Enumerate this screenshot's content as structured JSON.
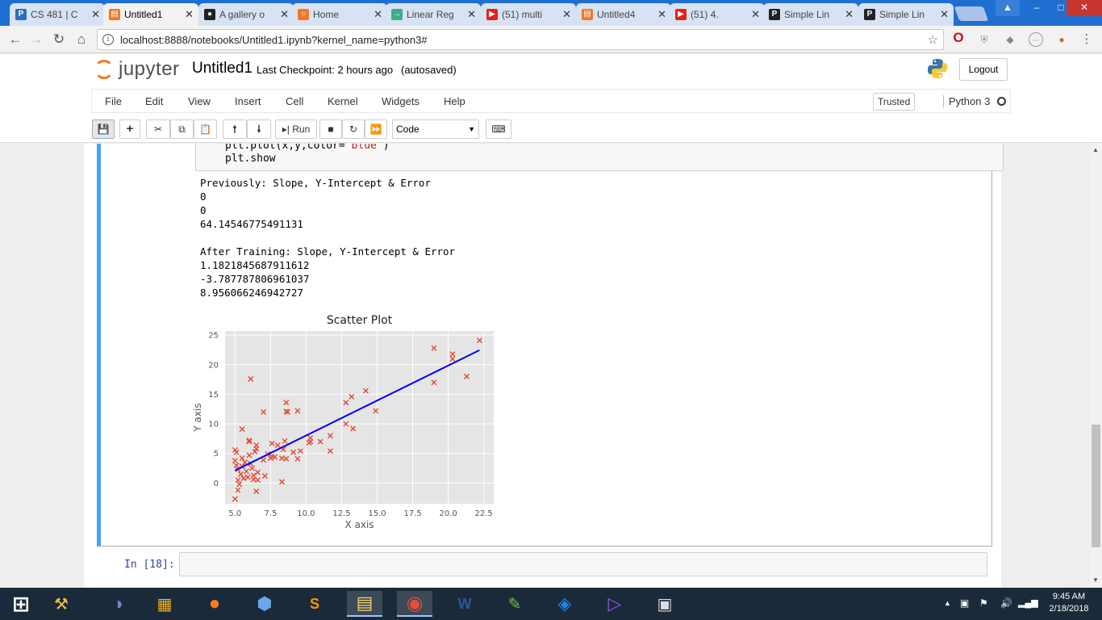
{
  "browser": {
    "tabs": [
      {
        "label": "CS 481 | C",
        "favicon": "P",
        "color": "#2d6fb7"
      },
      {
        "label": "Untitled1",
        "favicon": "jupyter-notebook-icon",
        "color": "#f37726",
        "active": true
      },
      {
        "label": "A gallery o",
        "favicon": "github-icon",
        "color": "#222222"
      },
      {
        "label": "Home",
        "favicon": "jupyter-icon",
        "color": "#f37726"
      },
      {
        "label": "Linear Reg",
        "favicon": "arrow-icon",
        "color": "#3cae8a"
      },
      {
        "label": "(51) multi",
        "favicon": "youtube-icon",
        "color": "#e62117"
      },
      {
        "label": "Untitled4",
        "favicon": "jupyter-notebook-icon",
        "color": "#f37726"
      },
      {
        "label": "(51) 4.",
        "favicon": "youtube-icon",
        "color": "#e62117"
      },
      {
        "label": "Simple Lin",
        "favicon": "P",
        "color": "#222222"
      },
      {
        "label": "Simple Lin",
        "favicon": "P",
        "color": "#222222"
      }
    ],
    "url": "localhost:8888/notebooks/Untitled1.ipynb?kernel_name=python3#"
  },
  "jupyter": {
    "logo_text": "jupyter",
    "notebook_name": "Untitled1",
    "checkpoint": "Last Checkpoint: 2 hours ago",
    "autosave": "(autosaved)",
    "logout": "Logout",
    "menu": [
      "File",
      "Edit",
      "View",
      "Insert",
      "Cell",
      "Kernel",
      "Widgets",
      "Help"
    ],
    "trusted": "Trusted",
    "kernel": "Python 3",
    "run_label": "Run",
    "cell_type": "Code"
  },
  "cell": {
    "code_lines": [
      {
        "pre": "plt.plot(x,y,color=",
        "str": "'blue'",
        "post": ")"
      },
      {
        "pre": "plt.show",
        "str": "",
        "post": ""
      }
    ],
    "output_lines": [
      "Previously: Slope, Y-Intercept & Error",
      "0",
      "0",
      "64.14546775491131",
      "",
      "After Training: Slope, Y-Intercept & Error",
      "1.1821845687911612",
      "-3.787787806961037",
      "8.956066246942727"
    ],
    "next_prompt": "In [18]:"
  },
  "chart_data": {
    "type": "scatter",
    "title": "Scatter Plot",
    "xlabel": "X axis",
    "ylabel": "Y axis",
    "xlim": [
      4.3,
      23.2
    ],
    "ylim": [
      -3.5,
      25.7
    ],
    "xticks": [
      5.0,
      7.5,
      10.0,
      12.5,
      15.0,
      17.5,
      20.0,
      22.5
    ],
    "xtick_labels": [
      "5.0",
      "7.5",
      "10.0",
      "12.5",
      "15.0",
      "17.5",
      "20.0",
      "22.5"
    ],
    "yticks": [
      0,
      5,
      10,
      15,
      20,
      25
    ],
    "ytick_labels": [
      "0",
      "5",
      "10",
      "15",
      "20",
      "25"
    ],
    "grid": true,
    "background": "#e5e5e5",
    "marker": "x",
    "marker_color": "#e24a33",
    "line_color": "#0000ff",
    "points": [
      [
        5.0,
        5.6
      ],
      [
        5.1,
        5.2
      ],
      [
        5.0,
        3.8
      ],
      [
        5.1,
        3.0
      ],
      [
        5.2,
        2.3
      ],
      [
        5.2,
        0.5
      ],
      [
        5.3,
        -0.2
      ],
      [
        5.2,
        -1.2
      ],
      [
        5.0,
        -2.7
      ],
      [
        5.4,
        1.5
      ],
      [
        5.5,
        2.8
      ],
      [
        5.5,
        4.2
      ],
      [
        5.6,
        0.8
      ],
      [
        5.7,
        3.5
      ],
      [
        5.8,
        2.0
      ],
      [
        5.5,
        9.1
      ],
      [
        5.9,
        1.0
      ],
      [
        6.0,
        4.7
      ],
      [
        6.0,
        7.0
      ],
      [
        6.0,
        7.2
      ],
      [
        6.1,
        3.3
      ],
      [
        6.2,
        2.5
      ],
      [
        6.3,
        1.3
      ],
      [
        6.3,
        0.6
      ],
      [
        6.1,
        17.6
      ],
      [
        6.4,
        5.3
      ],
      [
        6.5,
        6.4
      ],
      [
        6.5,
        5.8
      ],
      [
        6.6,
        1.8
      ],
      [
        6.6,
        0.5
      ],
      [
        6.5,
        -1.4
      ],
      [
        7.0,
        3.9
      ],
      [
        7.1,
        1.2
      ],
      [
        7.3,
        4.9
      ],
      [
        7.5,
        4.2
      ],
      [
        7.6,
        6.7
      ],
      [
        7.6,
        4.5
      ],
      [
        7.8,
        4.4
      ],
      [
        8.0,
        6.4
      ],
      [
        8.3,
        4.2
      ],
      [
        8.3,
        0.2
      ],
      [
        8.4,
        5.7
      ],
      [
        8.6,
        4.1
      ],
      [
        8.5,
        7.1
      ],
      [
        8.7,
        12.0
      ],
      [
        8.6,
        12.1
      ],
      [
        8.6,
        13.6
      ],
      [
        9.1,
        5.2
      ],
      [
        9.4,
        12.2
      ],
      [
        9.4,
        4.1
      ],
      [
        9.6,
        5.4
      ],
      [
        10.2,
        6.8
      ],
      [
        10.3,
        7.0
      ],
      [
        10.3,
        7.6
      ],
      [
        11.0,
        7.0
      ],
      [
        11.7,
        8.0
      ],
      [
        11.7,
        5.4
      ],
      [
        12.8,
        13.6
      ],
      [
        12.8,
        10.0
      ],
      [
        13.2,
        14.6
      ],
      [
        13.3,
        9.2
      ],
      [
        14.2,
        15.6
      ],
      [
        14.9,
        12.2
      ],
      [
        19.0,
        22.8
      ],
      [
        19.0,
        17.0
      ],
      [
        20.3,
        21.8
      ],
      [
        20.3,
        21.0
      ],
      [
        21.3,
        18.0
      ],
      [
        22.2,
        24.1
      ],
      [
        7.0,
        12.0
      ]
    ],
    "fit_line": [
      [
        5.0,
        2.12
      ],
      [
        22.2,
        22.46
      ]
    ]
  },
  "taskbar": {
    "icons": [
      "windows-start-icon",
      "tools-icon",
      "eclipse-icon",
      "vmware-icon",
      "firefox-icon",
      "virtualbox-icon",
      "sublime-text-icon",
      "file-explorer-icon",
      "chrome-icon",
      "word-icon",
      "notepad-icon",
      "teamviewer-icon",
      "visual-studio-icon",
      "terminal-icon"
    ],
    "time": "9:45 AM",
    "date": "2/18/2018"
  }
}
